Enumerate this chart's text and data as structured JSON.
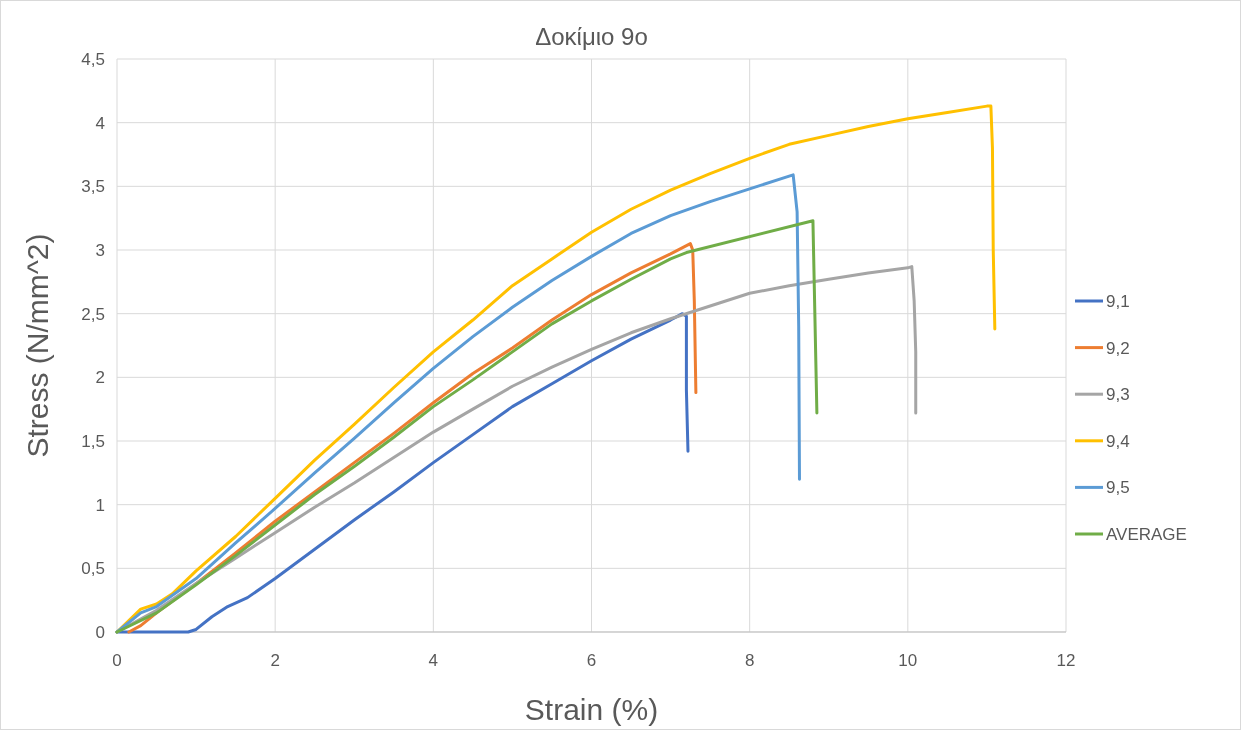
{
  "chart_data": {
    "type": "line",
    "title": "Δοκίμιο 9ο",
    "xlabel": "Strain (%)",
    "ylabel": "Stress (N/mm^2)",
    "xlim": [
      0,
      12
    ],
    "xticks": [
      0,
      2,
      4,
      6,
      8,
      10,
      12
    ],
    "ylim": [
      0,
      4.5
    ],
    "yticks": [
      0,
      {
        "value": 0.5,
        "label": "0,5"
      },
      1,
      {
        "value": 1.5,
        "label": "1,5"
      },
      2,
      {
        "value": 2.5,
        "label": "2,5"
      },
      3,
      {
        "value": 3.5,
        "label": "3,5"
      },
      4,
      {
        "value": 4.5,
        "label": "4,5"
      }
    ],
    "grid": true,
    "legend": "right",
    "marker": "none",
    "line_style": "solid",
    "series": [
      {
        "name": "9,1",
        "color": "#4472c4",
        "x": [
          0,
          0.9,
          1.0,
          1.2,
          1.4,
          1.65,
          2,
          2.5,
          3,
          3.5,
          4,
          4.5,
          5,
          5.5,
          6,
          6.5,
          7,
          7.15,
          7.2,
          7.2,
          7.22
        ],
        "values": [
          0,
          0,
          0.02,
          0.12,
          0.2,
          0.27,
          0.42,
          0.65,
          0.88,
          1.1,
          1.33,
          1.55,
          1.77,
          1.95,
          2.13,
          2.3,
          2.45,
          2.5,
          2.48,
          1.9,
          1.42
        ]
      },
      {
        "name": "9,2",
        "color": "#ed7d31",
        "x": [
          0.15,
          0.3,
          0.5,
          1,
          1.5,
          2,
          2.5,
          3,
          3.5,
          4,
          4.5,
          5,
          5.5,
          6,
          6.5,
          7,
          7.25,
          7.28,
          7.3,
          7.32
        ],
        "values": [
          0,
          0.05,
          0.15,
          0.38,
          0.62,
          0.87,
          1.1,
          1.33,
          1.56,
          1.8,
          2.03,
          2.23,
          2.45,
          2.65,
          2.82,
          2.97,
          3.05,
          3.0,
          2.6,
          1.88
        ]
      },
      {
        "name": "9,3",
        "color": "#a5a5a5",
        "x": [
          0,
          0.5,
          1,
          1.5,
          2,
          2.5,
          3,
          3.5,
          4,
          4.5,
          5,
          5.5,
          6,
          6.5,
          7,
          7.5,
          8,
          8.5,
          9,
          9.5,
          10,
          10.05,
          10.08,
          10.1,
          10.1
        ],
        "values": [
          0,
          0.17,
          0.38,
          0.58,
          0.78,
          0.98,
          1.17,
          1.37,
          1.57,
          1.75,
          1.93,
          2.08,
          2.22,
          2.35,
          2.46,
          2.56,
          2.66,
          2.72,
          2.77,
          2.82,
          2.86,
          2.87,
          2.6,
          2.2,
          1.72
        ]
      },
      {
        "name": "9,4",
        "color": "#ffc000",
        "x": [
          0,
          0.3,
          0.5,
          0.7,
          1,
          1.5,
          2,
          2.5,
          3,
          3.5,
          4,
          4.5,
          5,
          5.5,
          6,
          6.5,
          7,
          7.5,
          8,
          8.5,
          9,
          9.5,
          10,
          10.5,
          11,
          11.05,
          11.07,
          11.08,
          11.1
        ],
        "values": [
          0,
          0.18,
          0.22,
          0.3,
          0.48,
          0.75,
          1.05,
          1.35,
          1.63,
          1.92,
          2.2,
          2.45,
          2.72,
          2.93,
          3.14,
          3.32,
          3.47,
          3.6,
          3.72,
          3.83,
          3.9,
          3.97,
          4.03,
          4.08,
          4.13,
          4.13,
          3.8,
          3.0,
          2.38
        ]
      },
      {
        "name": "9,5",
        "color": "#5b9bd5",
        "x": [
          0,
          0.3,
          0.5,
          1,
          1.5,
          2,
          2.5,
          3,
          3.5,
          4,
          4.5,
          5,
          5.5,
          6,
          6.5,
          7,
          7.5,
          8,
          8.5,
          8.55,
          8.6,
          8.62,
          8.63
        ],
        "values": [
          0,
          0.15,
          0.2,
          0.42,
          0.7,
          0.97,
          1.25,
          1.52,
          1.8,
          2.07,
          2.32,
          2.55,
          2.76,
          2.95,
          3.13,
          3.27,
          3.38,
          3.48,
          3.58,
          3.59,
          3.3,
          2.4,
          1.2
        ]
      },
      {
        "name": "AVERAGE",
        "color": "#70ad47",
        "x": [
          0,
          0.5,
          1,
          1.5,
          2,
          2.5,
          3,
          3.5,
          4,
          4.5,
          5,
          5.5,
          6,
          6.5,
          7,
          7.2,
          8.8,
          8.85
        ],
        "values": [
          0,
          0.15,
          0.37,
          0.6,
          0.84,
          1.08,
          1.3,
          1.53,
          1.77,
          1.98,
          2.2,
          2.42,
          2.6,
          2.77,
          2.93,
          2.98,
          3.23,
          1.72
        ]
      }
    ]
  }
}
